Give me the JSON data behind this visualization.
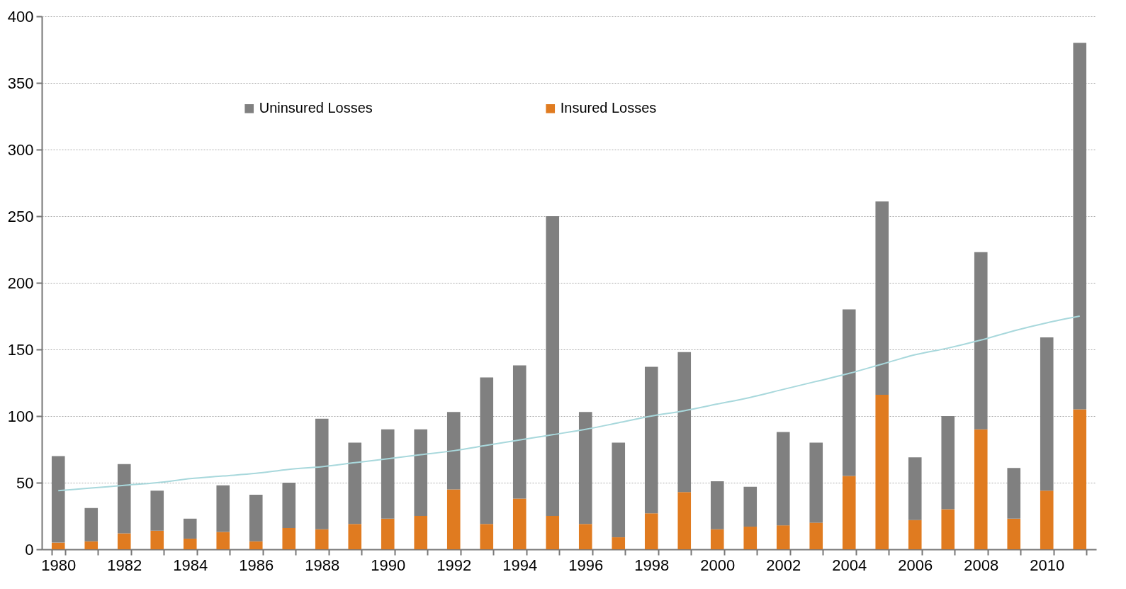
{
  "chart_data": {
    "type": "bar",
    "stacked": true,
    "categories": [
      "1980",
      null,
      "1982",
      null,
      "1984",
      null,
      "1986",
      null,
      "1988",
      null,
      "1990",
      null,
      "1992",
      null,
      "1994",
      null,
      "1996",
      null,
      "1998",
      null,
      "2000",
      null,
      "2002",
      null,
      "2004",
      null,
      "2006",
      null,
      "2008",
      null,
      "2010",
      null
    ],
    "series": [
      {
        "name": "Insured Losses",
        "color": "#e07b20",
        "values": [
          5,
          6,
          12,
          14,
          8,
          13,
          6,
          16,
          15,
          19,
          23,
          25,
          45,
          19,
          38,
          25,
          19,
          9,
          27,
          43,
          15,
          17,
          18,
          20,
          55,
          116,
          22,
          30,
          90,
          23,
          44,
          105
        ]
      },
      {
        "name": "Uninsured Losses",
        "color": "#808080",
        "values": [
          65,
          25,
          52,
          30,
          15,
          35,
          35,
          34,
          83,
          61,
          67,
          65,
          58,
          110,
          100,
          225,
          84,
          71,
          110,
          105,
          36,
          30,
          70,
          60,
          125,
          145,
          47,
          70,
          133,
          38,
          115,
          275
        ]
      },
      {
        "type": "line",
        "color": "#a8d8dc",
        "values": [
          44,
          46,
          48,
          50,
          53,
          55,
          57,
          60,
          62,
          65,
          68,
          71,
          74,
          78,
          82,
          86,
          90,
          95,
          100,
          104,
          109,
          114,
          120,
          126,
          132,
          139,
          146,
          151,
          157,
          164,
          170,
          175
        ]
      }
    ],
    "ylim": [
      0,
      400
    ],
    "yticks": [
      0,
      50,
      100,
      150,
      200,
      250,
      300,
      350,
      400
    ],
    "grid": "y",
    "legend": "top"
  }
}
